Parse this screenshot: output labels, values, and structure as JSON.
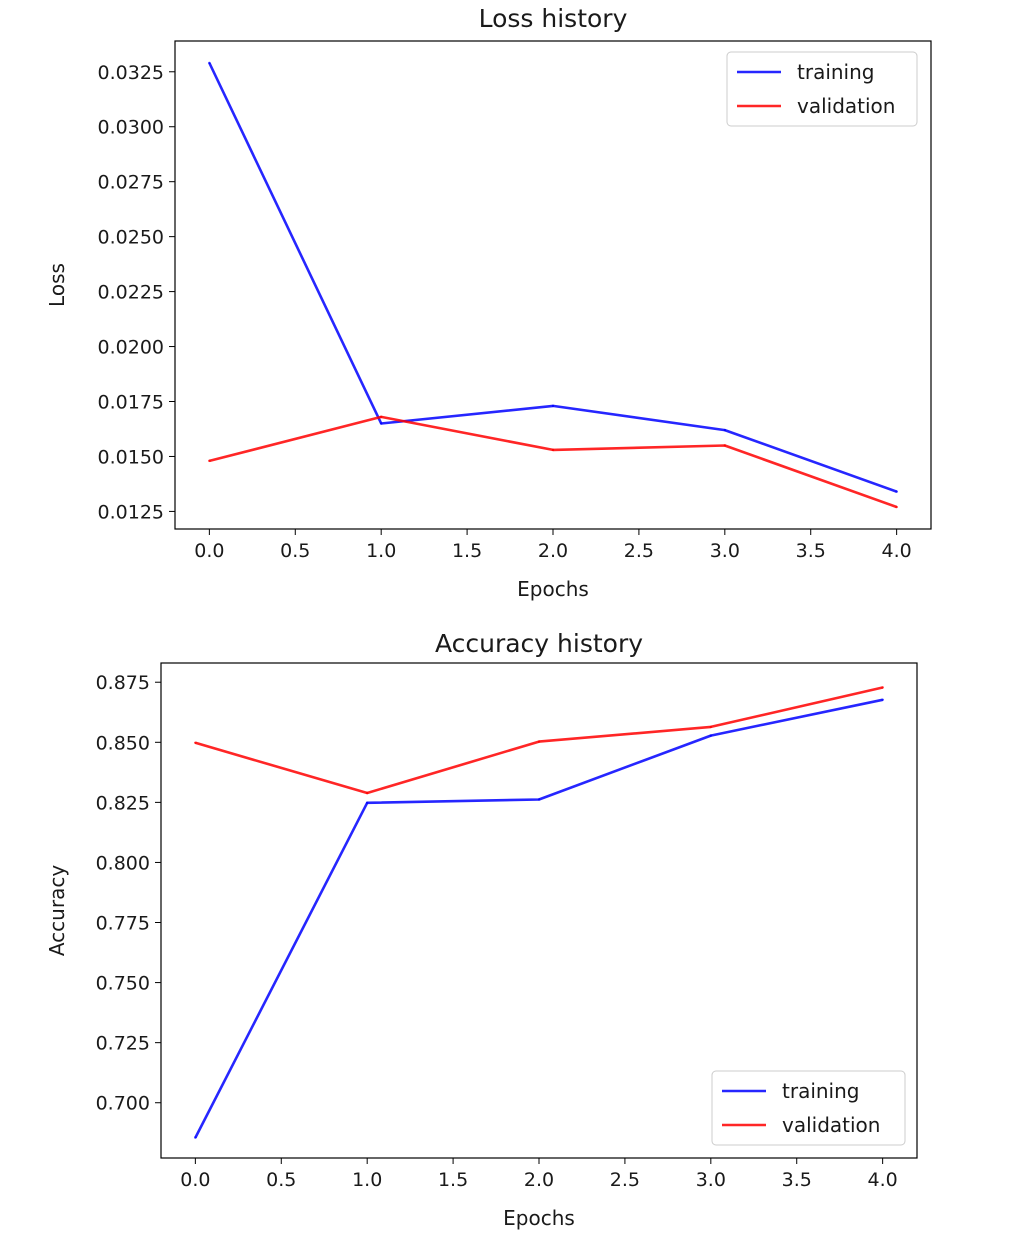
{
  "chart_data": [
    {
      "type": "line",
      "title": "Loss history",
      "xlabel": "Epochs",
      "ylabel": "Loss",
      "x": [
        0,
        1,
        2,
        3,
        4
      ],
      "xlim": [
        -0.2,
        4.2
      ],
      "ylim": [
        0.0117,
        0.0339
      ],
      "xticks": [
        0.0,
        0.5,
        1.0,
        1.5,
        2.0,
        2.5,
        3.0,
        3.5,
        4.0
      ],
      "xtick_labels": [
        "0.0",
        "0.5",
        "1.0",
        "1.5",
        "2.0",
        "2.5",
        "3.0",
        "3.5",
        "4.0"
      ],
      "yticks": [
        0.0125,
        0.015,
        0.0175,
        0.02,
        0.0225,
        0.025,
        0.0275,
        0.03,
        0.0325
      ],
      "ytick_labels": [
        "0.0125",
        "0.0150",
        "0.0175",
        "0.0200",
        "0.0225",
        "0.0250",
        "0.0275",
        "0.0300",
        "0.0325"
      ],
      "grid": false,
      "legend_position": "top-right",
      "series": [
        {
          "name": "training",
          "color": "#0000ff",
          "values": [
            0.0329,
            0.0165,
            0.0173,
            0.0162,
            0.0134
          ]
        },
        {
          "name": "validation",
          "color": "#ff0000",
          "values": [
            0.0148,
            0.0168,
            0.0153,
            0.0155,
            0.0127
          ]
        }
      ]
    },
    {
      "type": "line",
      "title": "Accuracy history",
      "xlabel": "Epochs",
      "ylabel": "Accuracy",
      "x": [
        0,
        1,
        2,
        3,
        4
      ],
      "xlim": [
        -0.2,
        4.2
      ],
      "ylim": [
        0.677,
        0.883
      ],
      "xticks": [
        0.0,
        0.5,
        1.0,
        1.5,
        2.0,
        2.5,
        3.0,
        3.5,
        4.0
      ],
      "xtick_labels": [
        "0.0",
        "0.5",
        "1.0",
        "1.5",
        "2.0",
        "2.5",
        "3.0",
        "3.5",
        "4.0"
      ],
      "yticks": [
        0.7,
        0.725,
        0.75,
        0.775,
        0.8,
        0.825,
        0.85,
        0.875
      ],
      "ytick_labels": [
        "0.700",
        "0.725",
        "0.750",
        "0.775",
        "0.800",
        "0.825",
        "0.850",
        "0.875"
      ],
      "grid": false,
      "legend_position": "bottom-right",
      "series": [
        {
          "name": "training",
          "color": "#0000ff",
          "values": [
            0.6855,
            0.8248,
            0.8262,
            0.8528,
            0.8677
          ]
        },
        {
          "name": "validation",
          "color": "#ff0000",
          "values": [
            0.8498,
            0.8289,
            0.8503,
            0.8564,
            0.8728
          ]
        }
      ]
    }
  ]
}
